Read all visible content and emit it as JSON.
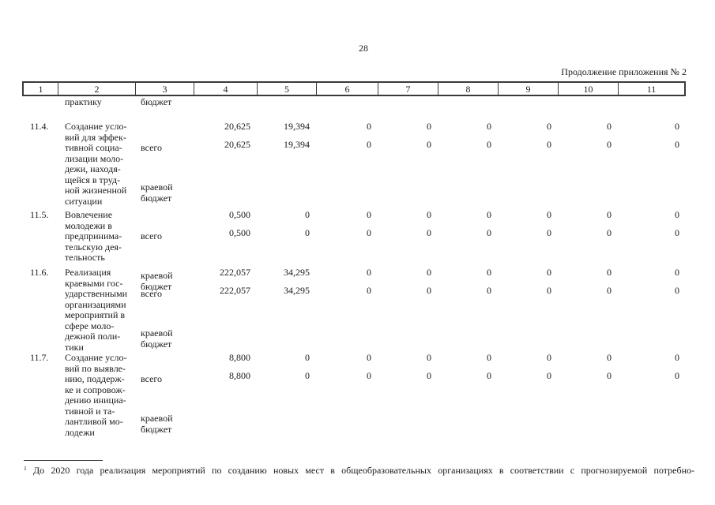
{
  "colors": {
    "background": "#ffffff",
    "text": "#1a1a1a",
    "table_border": "#3a3a3a"
  },
  "page": {
    "number": "28",
    "continuation_note": "Продолжение приложения № 2"
  },
  "table": {
    "column_numbers": [
      "1",
      "2",
      "3",
      "4",
      "5",
      "6",
      "7",
      "8",
      "9",
      "10",
      "11"
    ],
    "carryover": {
      "col2": "практику",
      "col3": "бюджет"
    },
    "rows": [
      {
        "no": "11.4.",
        "name": "Создание усло-\nвий для эффек-\nтивной социа-\nлизации моло-\nдежи, находя-\nщейся в труд-\nной жизненной\nситуации",
        "scope_total": "всего",
        "scope_regional": "краевой\nбюджет",
        "values_total": [
          "20,625",
          "19,394",
          "0",
          "0",
          "0",
          "0",
          "0",
          "0"
        ],
        "values_regional": [
          "20,625",
          "19,394",
          "0",
          "0",
          "0",
          "0",
          "0",
          "0"
        ]
      },
      {
        "no": "11.5.",
        "name": "Вовлечение\nмолодежи в\nпредпринима-\nтельскую дея-\nтельность",
        "scope_total": "всего",
        "scope_regional": "краевой\nбюджет",
        "values_total": [
          "0,500",
          "0",
          "0",
          "0",
          "0",
          "0",
          "0",
          "0"
        ],
        "values_regional": [
          "0,500",
          "0",
          "0",
          "0",
          "0",
          "0",
          "0",
          "0"
        ]
      },
      {
        "no": "11.6.",
        "name": "Реализация\nкраевыми гос-\nударственными\nорганизациями\nмероприятий в\nсфере моло-\nдежной поли-\nтики",
        "scope_total": "всего",
        "scope_regional": "краевой\nбюджет",
        "values_total": [
          "222,057",
          "34,295",
          "0",
          "0",
          "0",
          "0",
          "0",
          "0"
        ],
        "values_regional": [
          "222,057",
          "34,295",
          "0",
          "0",
          "0",
          "0",
          "0",
          "0"
        ]
      },
      {
        "no": "11.7.",
        "name": "Создание усло-\nвий по выявле-\nнию, поддерж-\nке и сопровож-\nдению инициа-\nтивной и та-\nлантливой мо-\nлодежи",
        "scope_total": "всего",
        "scope_regional": "краевой\nбюджет",
        "values_total": [
          "8,800",
          "0",
          "0",
          "0",
          "0",
          "0",
          "0",
          "0"
        ],
        "values_regional": [
          "8,800",
          "0",
          "0",
          "0",
          "0",
          "0",
          "0",
          "0"
        ]
      }
    ]
  },
  "footnote": {
    "marker": "1",
    "text": "До 2020 года реализация мероприятий по созданию новых мест в общеобразовательных организациях в соответствии с прогнозируемой потребно-"
  }
}
